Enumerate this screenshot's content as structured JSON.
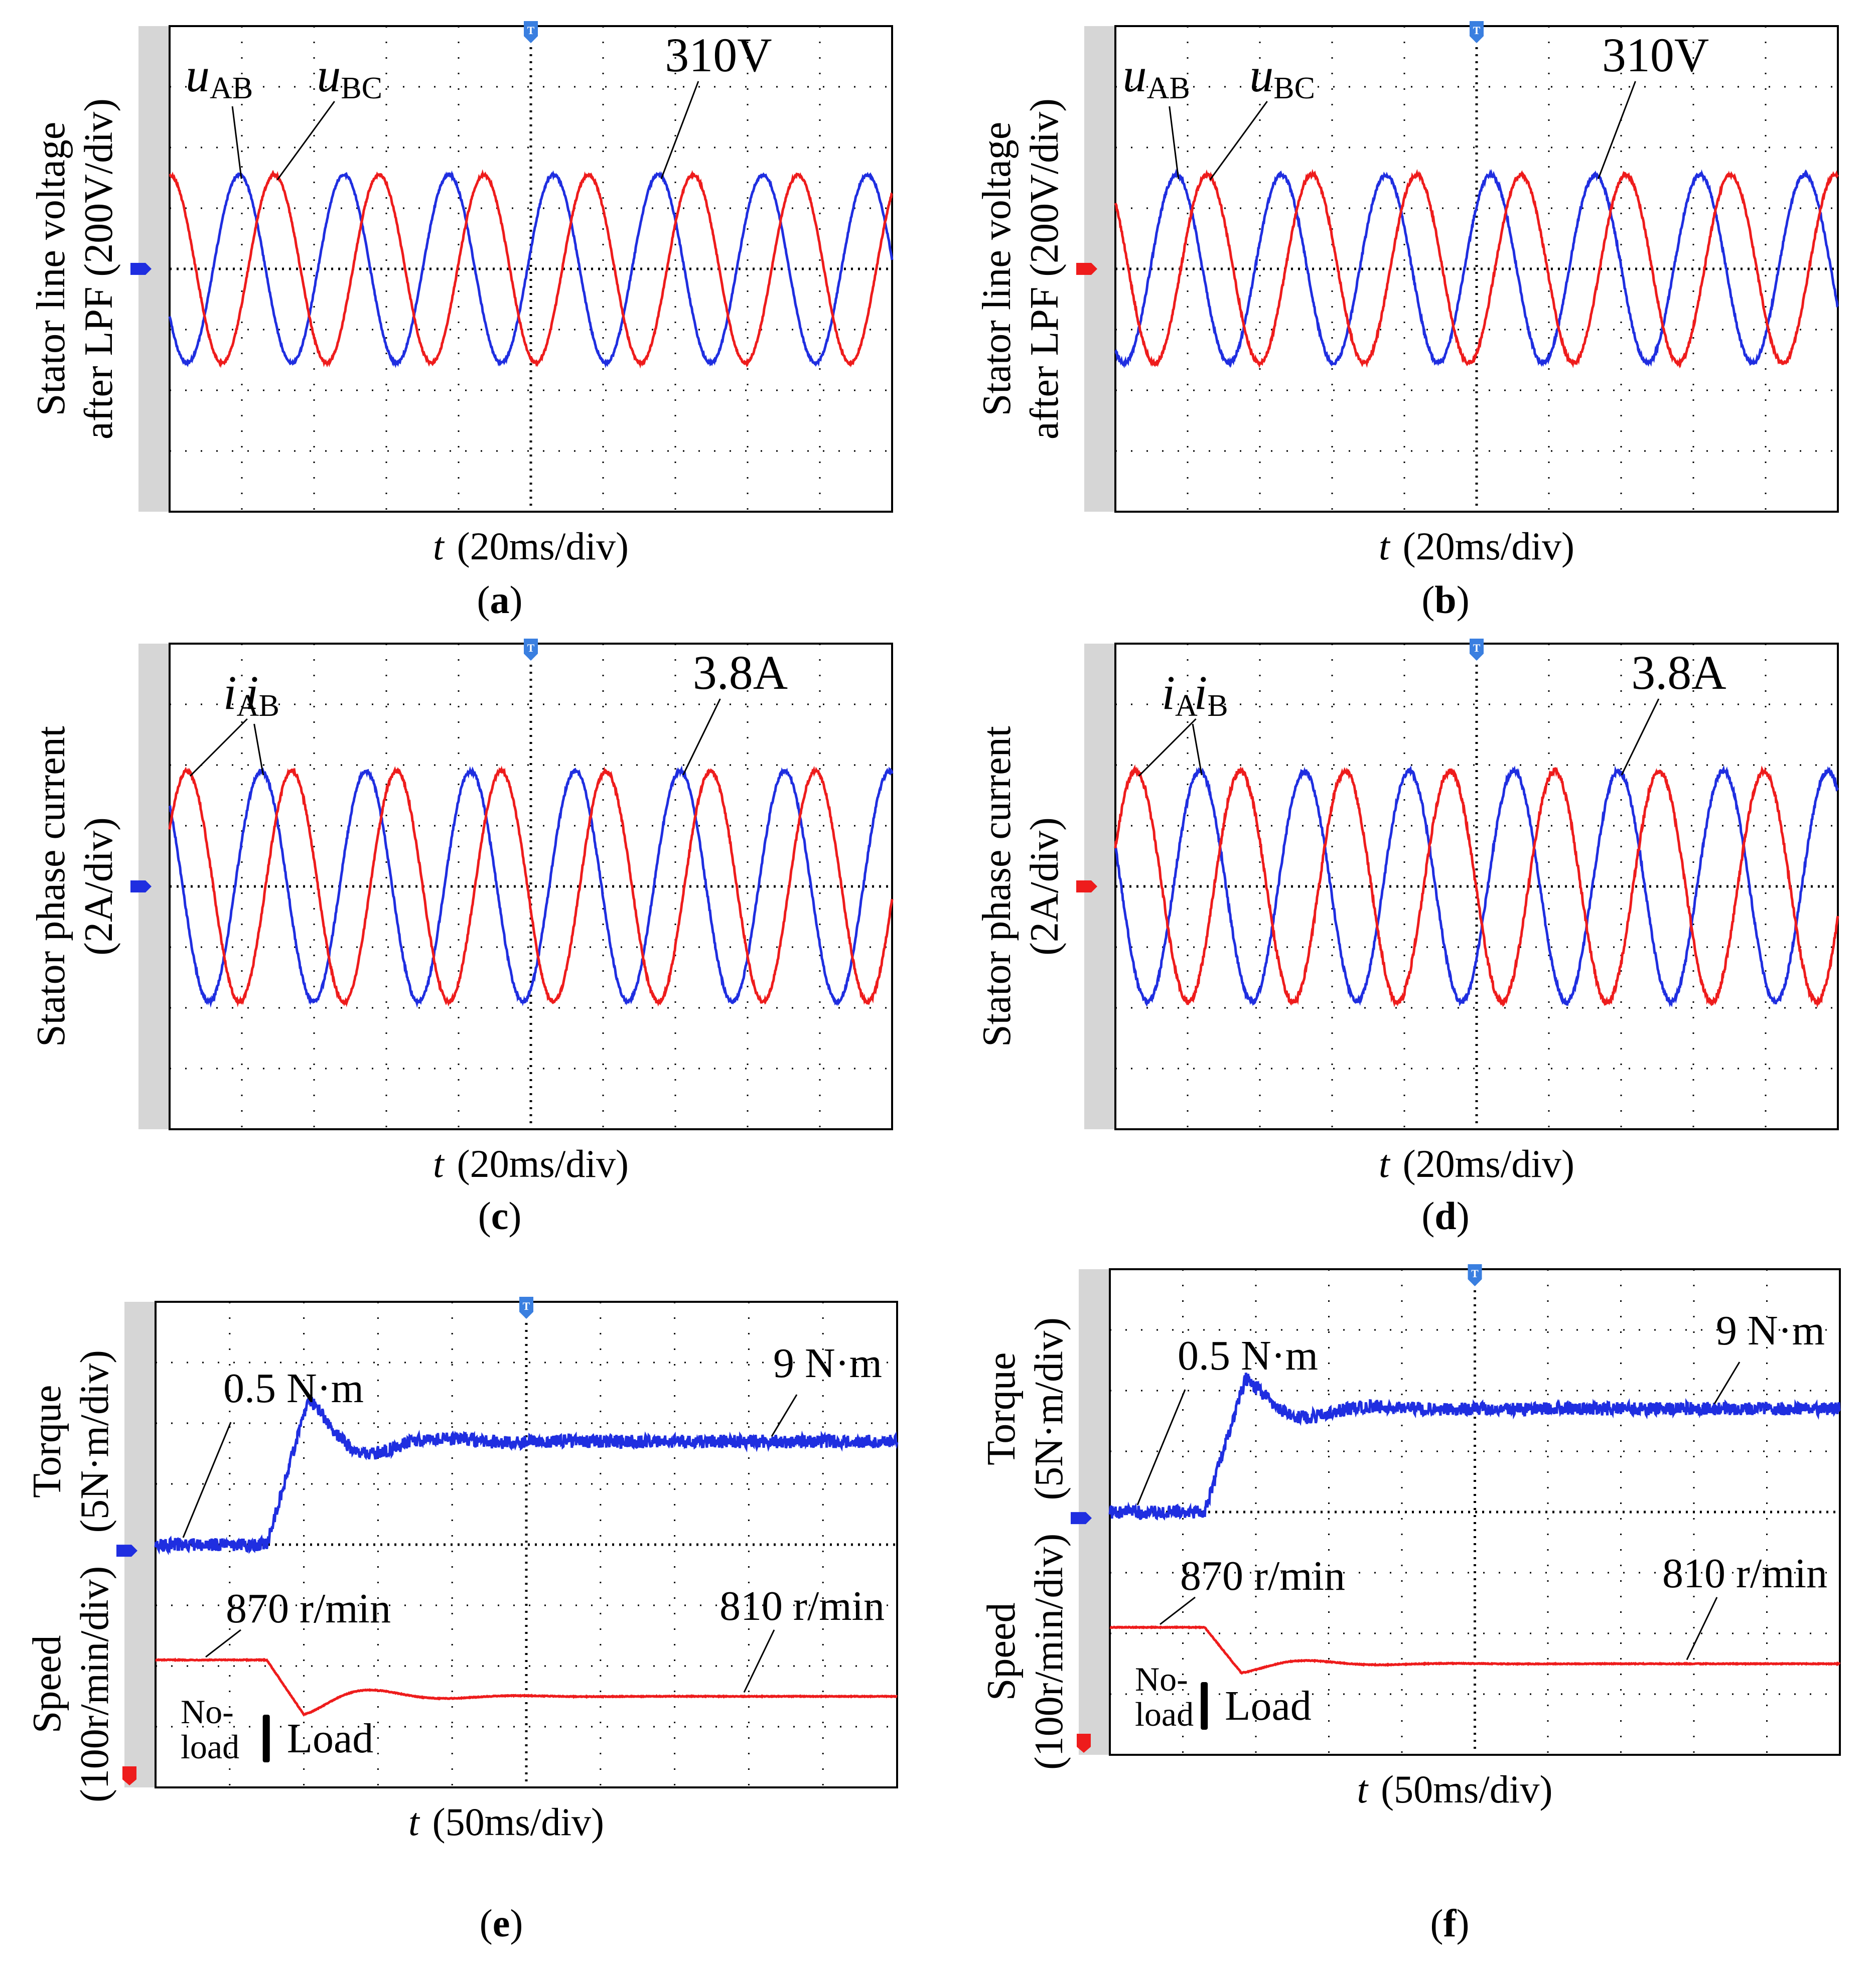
{
  "colors": {
    "blue": "#1f2ee0",
    "red": "#ee1c1c",
    "grid": "#000000",
    "frame_side": "#d6d6d6",
    "marker": "#3a7fe0"
  },
  "chart_data": [
    {
      "id": "a",
      "type": "line",
      "caption_letter": "a",
      "ylabel_lines": [
        "Stator line voltage",
        "after LPF (200V/div)"
      ],
      "xlabel_var": "t",
      "xlabel_unit": "(20ms/div)",
      "time_range_ms": [
        0,
        200
      ],
      "divisions": 10,
      "volts_per_div": 200,
      "ylim": [
        -800,
        800
      ],
      "series": [
        {
          "name": "uAB",
          "label_main": "u",
          "label_sub": "AB",
          "color": "blue",
          "amplitude": 310,
          "freq_hz": 34.5,
          "phase_deg": -150,
          "noise": 4
        },
        {
          "name": "uBC",
          "label_main": "u",
          "label_sub": "BC",
          "color": "red",
          "amplitude": 310,
          "freq_hz": 34.5,
          "phase_deg": 90,
          "noise": 4
        }
      ],
      "peak_label": "310V"
    },
    {
      "id": "b",
      "type": "line",
      "caption_letter": "b",
      "ylabel_lines": [
        "Stator line voltage",
        "after LPF (200V/div)"
      ],
      "xlabel_var": "t",
      "xlabel_unit": "(20ms/div)",
      "time_range_ms": [
        0,
        200
      ],
      "divisions": 10,
      "volts_per_div": 200,
      "ylim": [
        -800,
        800
      ],
      "series": [
        {
          "name": "uAB",
          "label_main": "u",
          "label_sub": "AB",
          "color": "blue",
          "amplitude": 310,
          "freq_hz": 34.5,
          "phase_deg": -120,
          "noise": 6
        },
        {
          "name": "uBC",
          "label_main": "u",
          "label_sub": "BC",
          "color": "red",
          "amplitude": 310,
          "freq_hz": 34.5,
          "phase_deg": 135,
          "noise": 6
        }
      ],
      "peak_label": "310V"
    },
    {
      "id": "c",
      "type": "line",
      "caption_letter": "c",
      "ylabel_lines": [
        "Stator phase current",
        "(2A/div)"
      ],
      "xlabel_var": "t",
      "xlabel_unit": "(20ms/div)",
      "time_range_ms": [
        0,
        200
      ],
      "divisions": 10,
      "amps_per_div": 2,
      "ylim": [
        -8,
        8
      ],
      "series": [
        {
          "name": "iA",
          "label_main": "i",
          "label_sub": "A",
          "color": "blue",
          "amplitude": 3.8,
          "freq_hz": 34.5,
          "phase_deg": 135,
          "noise": 0.06
        },
        {
          "name": "iB",
          "label_main": "i",
          "label_sub": "B",
          "color": "red",
          "amplitude": 3.8,
          "freq_hz": 34.5,
          "phase_deg": 30,
          "noise": 0.06
        }
      ],
      "peak_label": "3.8A"
    },
    {
      "id": "d",
      "type": "line",
      "caption_letter": "d",
      "ylabel_lines": [
        "Stator phase current",
        "(2A/div)"
      ],
      "xlabel_var": "t",
      "xlabel_unit": "(20ms/div)",
      "time_range_ms": [
        0,
        200
      ],
      "divisions": 10,
      "amps_per_div": 2,
      "ylim": [
        -8,
        8
      ],
      "series": [
        {
          "name": "iA",
          "label_main": "i",
          "label_sub": "A",
          "color": "blue",
          "amplitude": 3.8,
          "freq_hz": 34.5,
          "phase_deg": 160,
          "noise": 0.08
        },
        {
          "name": "iB",
          "label_main": "i",
          "label_sub": "B",
          "color": "red",
          "amplitude": 3.8,
          "freq_hz": 34.5,
          "phase_deg": 20,
          "noise": 0.1
        }
      ],
      "peak_label": "3.8A"
    },
    {
      "id": "e",
      "type": "line",
      "caption_letter": "e",
      "ylabel_torque": [
        "Torque",
        "(5N·m/div)"
      ],
      "ylabel_speed": [
        "Speed",
        "(100r/min/div)"
      ],
      "xlabel_var": "t",
      "xlabel_unit": "(50ms/div)",
      "time_range_ms": [
        0,
        500
      ],
      "divisions": 10,
      "load_time_ms": 75,
      "torque": {
        "initial": 0.5,
        "final": 9,
        "overshoot_peak": 12.5,
        "unit": "N·m",
        "color": "blue"
      },
      "speed": {
        "initial": 870,
        "final": 810,
        "undershoot_min": 780,
        "unit": "r/min",
        "color": "red"
      },
      "labels": {
        "torque_initial": "0.5 N·m",
        "torque_final": "9 N·m",
        "speed_initial": "870 r/min",
        "speed_final": "810 r/min",
        "noload": [
          "No-",
          "load"
        ],
        "load": "Load"
      }
    },
    {
      "id": "f",
      "type": "line",
      "caption_letter": "f",
      "ylabel_torque": [
        "Torque",
        "(5N·m/div)"
      ],
      "ylabel_speed": [
        "Speed",
        "(100r/min/div)"
      ],
      "xlabel_var": "t",
      "xlabel_unit": "(50ms/div)",
      "time_range_ms": [
        0,
        500
      ],
      "divisions": 10,
      "load_time_ms": 65,
      "torque": {
        "initial": 0.5,
        "final": 9,
        "overshoot_peak": 11.5,
        "unit": "N·m",
        "color": "blue"
      },
      "speed": {
        "initial": 870,
        "final": 810,
        "undershoot_min": 795,
        "unit": "r/min",
        "color": "red"
      },
      "labels": {
        "torque_initial": "0.5 N·m",
        "torque_final": "9 N·m",
        "speed_initial": "870 r/min",
        "speed_final": "810 r/min",
        "noload": [
          "No-",
          "load"
        ],
        "load": "Load"
      }
    }
  ]
}
